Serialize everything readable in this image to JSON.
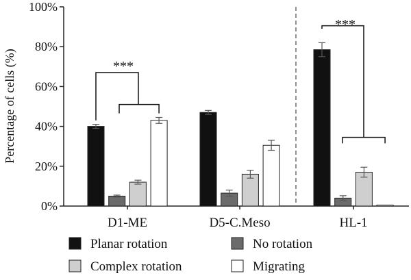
{
  "chart_data": {
    "type": "bar",
    "ylabel": "Percentage of cells (%)",
    "xlabel": "",
    "ylim": [
      0,
      100
    ],
    "yticks": [
      "0%",
      "20%",
      "40%",
      "60%",
      "80%",
      "100%"
    ],
    "categories": [
      "D1-ME",
      "D5-C.Meso",
      "HL-1"
    ],
    "series": [
      {
        "name": "Planar rotation",
        "color": "#111111",
        "values": [
          40,
          47,
          78.5
        ],
        "errors": [
          1,
          1,
          3.5
        ]
      },
      {
        "name": "No rotation",
        "color": "#6b6b6b",
        "values": [
          5,
          6.5,
          4
        ],
        "errors": [
          0.5,
          1.5,
          1.2
        ]
      },
      {
        "name": "Complex rotation",
        "color": "#cfcfcf",
        "values": [
          12,
          16,
          17
        ],
        "errors": [
          1,
          2,
          2.5
        ]
      },
      {
        "name": "Migrating",
        "color": "#ffffff",
        "values": [
          43,
          30.5,
          0.5
        ],
        "errors": [
          1.5,
          2.5,
          0
        ]
      }
    ],
    "annotations": [
      {
        "text": "***",
        "group": "D1-ME"
      },
      {
        "text": "***",
        "group": "HL-1"
      }
    ],
    "grid": false,
    "legend_position": "bottom",
    "divider_between": [
      "D5-C.Meso",
      "HL-1"
    ]
  }
}
